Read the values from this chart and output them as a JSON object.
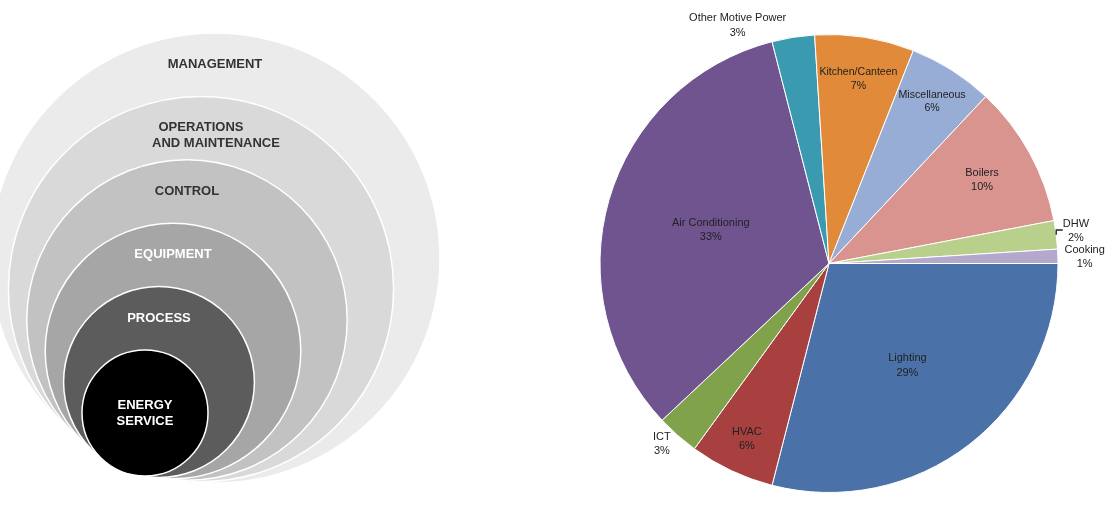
{
  "chart_data": [
    {
      "type": "other",
      "annotations": [
        "MANAGEMENT",
        "OPERATIONS\nAND MAINTENANCE",
        "CONTROL",
        "EQUIPMENT",
        "PROCESS",
        "ENERGY\nSERVICE"
      ]
    },
    {
      "type": "pie",
      "categories": [
        "Lighting",
        "HVAC",
        "ICT",
        "Air Conditioning",
        "Other Motive Power",
        "Kitchen/Canteen",
        "Miscellaneous",
        "Boilers",
        "DHW",
        "Cooking"
      ],
      "values": [
        29,
        6,
        3,
        33,
        3,
        7,
        6,
        10,
        2,
        1
      ],
      "value_labels": [
        "29%",
        "6%",
        "3%",
        "33%",
        "3%",
        "7%",
        "6%",
        "10%",
        "2%",
        "1%"
      ],
      "colors": [
        "#4a72a8",
        "#a84040",
        "#7fa24a",
        "#6f5490",
        "#3a9bb0",
        "#e08a3a",
        "#97add6",
        "#d99490",
        "#b8d08c",
        "#b4a8cc"
      ],
      "legend": false
    }
  ]
}
